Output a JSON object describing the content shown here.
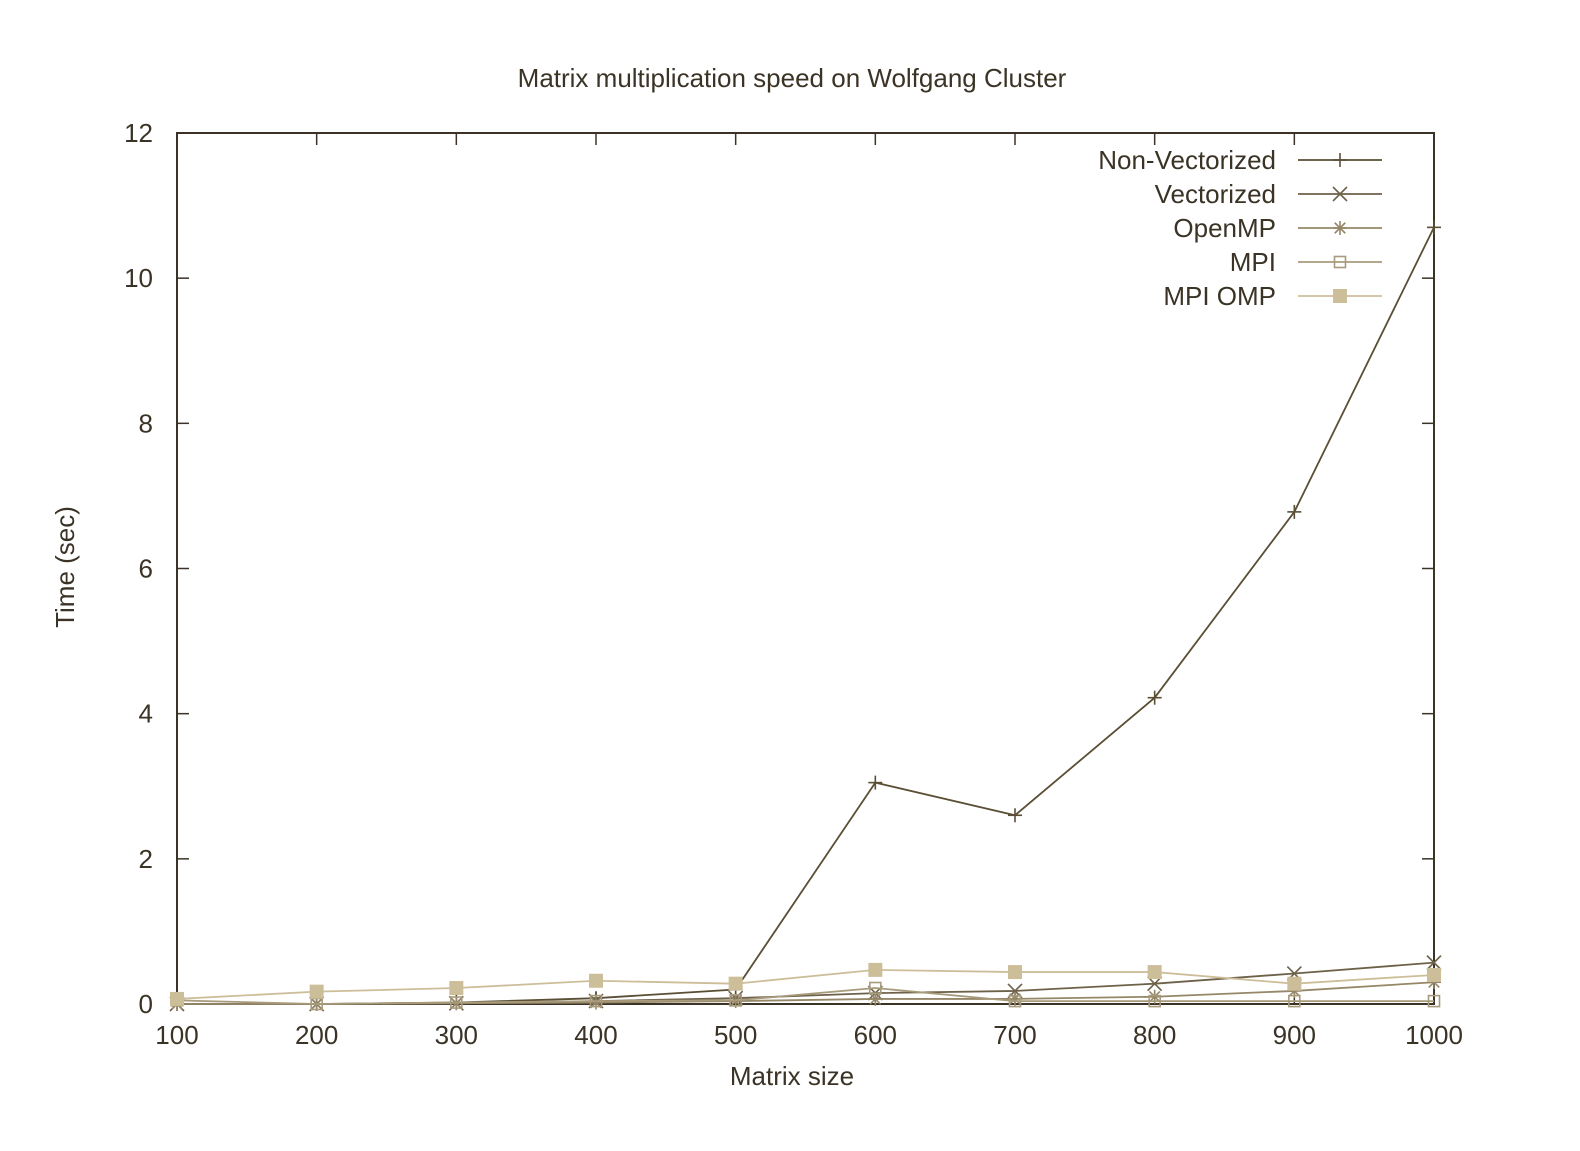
{
  "chart_data": {
    "type": "line",
    "title": "Matrix multiplication speed on Wolfgang Cluster",
    "xlabel": "Matrix size",
    "ylabel": "Time (sec)",
    "xlim": [
      100,
      1000
    ],
    "ylim": [
      0,
      12
    ],
    "x_ticks": [
      "100",
      "200",
      "300",
      "400",
      "500",
      "600",
      "700",
      "800",
      "900",
      "1000"
    ],
    "y_ticks": [
      "0",
      "2",
      "4",
      "6",
      "8",
      "10",
      "12"
    ],
    "grid": false,
    "legend_position": "top-right",
    "x": [
      100,
      200,
      300,
      400,
      500,
      600,
      700,
      800,
      900,
      1000
    ],
    "series": [
      {
        "name": "Non-Vectorized",
        "marker": "plus",
        "color": "#5a4e34",
        "values": [
          0.0,
          0.0,
          0.02,
          0.08,
          0.2,
          3.05,
          2.6,
          4.22,
          6.78,
          10.7
        ]
      },
      {
        "name": "Vectorized",
        "marker": "cross",
        "color": "#6e6149",
        "values": [
          0.0,
          0.0,
          0.01,
          0.04,
          0.08,
          0.15,
          0.18,
          0.28,
          0.42,
          0.57
        ]
      },
      {
        "name": "OpenMP",
        "marker": "star",
        "color": "#958768",
        "values": [
          0.0,
          0.0,
          0.01,
          0.02,
          0.04,
          0.07,
          0.07,
          0.1,
          0.18,
          0.3
        ]
      },
      {
        "name": "MPI",
        "marker": "square-open",
        "color": "#a89b7c",
        "values": [
          0.05,
          0.0,
          0.02,
          0.04,
          0.05,
          0.22,
          0.04,
          0.04,
          0.04,
          0.04
        ]
      },
      {
        "name": "MPI OMP",
        "marker": "square-filled",
        "color": "#cdbe9a",
        "values": [
          0.07,
          0.17,
          0.22,
          0.32,
          0.28,
          0.47,
          0.44,
          0.44,
          0.28,
          0.4
        ]
      }
    ]
  }
}
